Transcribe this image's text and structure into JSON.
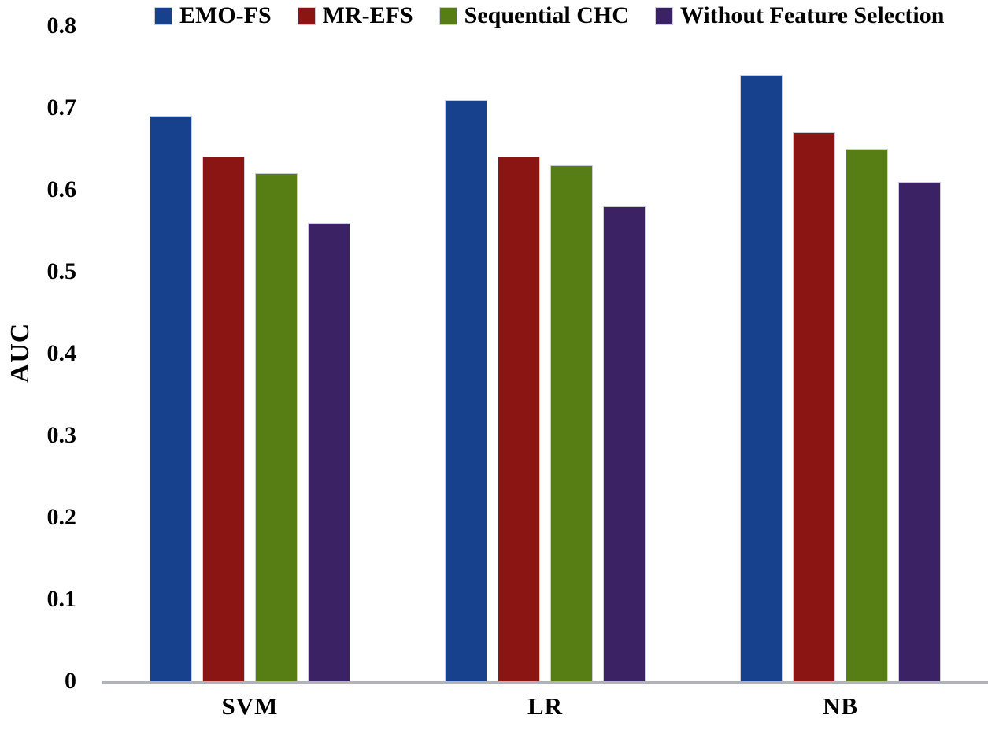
{
  "chart_data": {
    "type": "bar",
    "title": "",
    "xlabel": "",
    "ylabel": "AUC",
    "categories": [
      "SVM",
      "LR",
      "NB"
    ],
    "series": [
      {
        "name": "EMO-FS",
        "color": "#17418D",
        "values": [
          0.69,
          0.71,
          0.74
        ]
      },
      {
        "name": "MR-EFS",
        "color": "#8B1513",
        "values": [
          0.64,
          0.64,
          0.67
        ]
      },
      {
        "name": "Sequential CHC",
        "color": "#567E14",
        "values": [
          0.62,
          0.63,
          0.65
        ]
      },
      {
        "name": "Without Feature Selection",
        "color": "#3A2264",
        "values": [
          0.56,
          0.58,
          0.61
        ]
      }
    ],
    "ylim": [
      0,
      0.8
    ],
    "yticks": [
      "0",
      "0.1",
      "0.2",
      "0.3",
      "0.4",
      "0.5",
      "0.6",
      "0.7",
      "0.8"
    ],
    "grid": false,
    "legend_position": "top",
    "axis_line_color": "#b2b3b8",
    "bar_border_color": "#cdced6",
    "text_color": "#000000"
  }
}
